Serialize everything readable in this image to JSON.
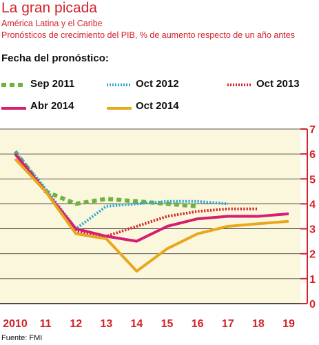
{
  "header": {
    "title": "La gran picada",
    "subtitle1": "América Latina y el Caribe",
    "subtitle2": "Pronósticos de crecimiento del PIB, % de aumento respecto de un año antes"
  },
  "legend": {
    "title": "Fecha del pronóstico:"
  },
  "source": "Fuente: FMI",
  "chart_data": {
    "type": "line",
    "x_tick_labels": [
      "2010",
      "11",
      "12",
      "13",
      "14",
      "15",
      "16",
      "17",
      "18",
      "19"
    ],
    "x_values": [
      2010,
      2011,
      2012,
      2013,
      2014,
      2015,
      2016,
      2017,
      2018,
      2019
    ],
    "ylim": [
      0,
      7
    ],
    "y_ticks": [
      0,
      1,
      2,
      3,
      4,
      5,
      6,
      7
    ],
    "y_axis_position": "right",
    "grid": "horizontal",
    "background": "#fbf7dd",
    "axis_color": "#d2232a",
    "series": [
      {
        "name": "Sep 2011",
        "color": "#6db33f",
        "style": "dotted-thick",
        "x": [
          2010,
          2011,
          2012,
          2013,
          2014,
          2015,
          2016
        ],
        "y": [
          6.1,
          4.5,
          4.0,
          4.2,
          4.1,
          4.0,
          3.9
        ]
      },
      {
        "name": "Oct 2012",
        "color": "#2fa8d8",
        "style": "dotted",
        "x": [
          2010,
          2011,
          2012,
          2013,
          2014,
          2015,
          2016,
          2017
        ],
        "y": [
          6.1,
          4.6,
          3.0,
          3.9,
          4.0,
          4.1,
          4.1,
          4.0
        ]
      },
      {
        "name": "Oct 2013",
        "color": "#d2232a",
        "style": "dotted",
        "x": [
          2010,
          2011,
          2012,
          2013,
          2014,
          2015,
          2016,
          2017,
          2018
        ],
        "y": [
          6.0,
          4.5,
          2.9,
          2.7,
          3.1,
          3.5,
          3.7,
          3.8,
          3.8
        ]
      },
      {
        "name": "Abr 2014",
        "color": "#d41f72",
        "style": "solid",
        "x": [
          2010,
          2011,
          2012,
          2013,
          2014,
          2015,
          2016,
          2017,
          2018,
          2019
        ],
        "y": [
          6.0,
          4.5,
          3.0,
          2.7,
          2.5,
          3.1,
          3.4,
          3.5,
          3.5,
          3.6
        ]
      },
      {
        "name": "Oct 2014",
        "color": "#e8a71c",
        "style": "solid",
        "x": [
          2010,
          2011,
          2012,
          2013,
          2014,
          2015,
          2016,
          2017,
          2018,
          2019
        ],
        "y": [
          5.8,
          4.5,
          2.8,
          2.6,
          1.3,
          2.2,
          2.8,
          3.1,
          3.2,
          3.3
        ]
      }
    ]
  }
}
